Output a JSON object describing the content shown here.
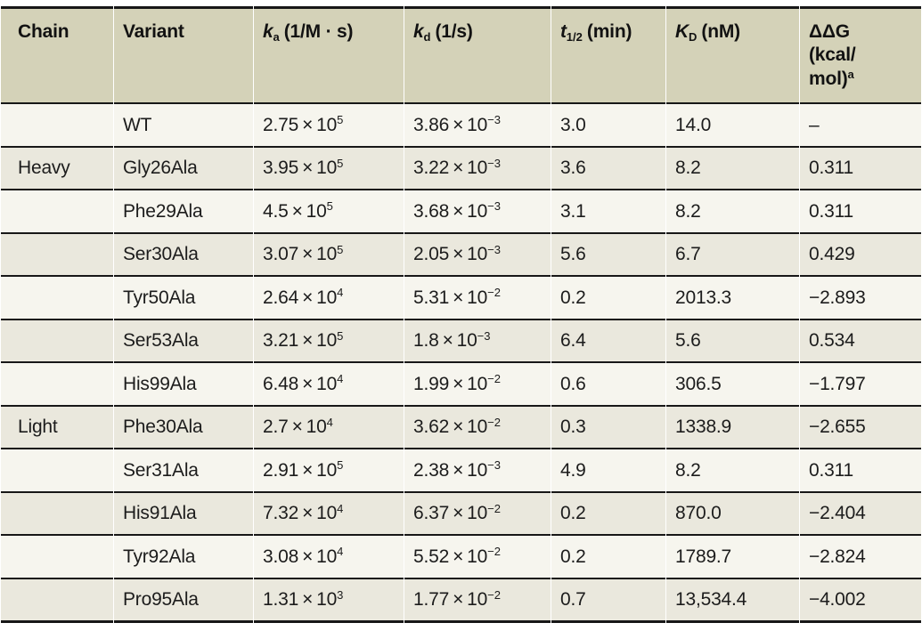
{
  "table": {
    "columns": [
      {
        "label": "Chain"
      },
      {
        "label": "Variant"
      },
      {
        "symbol": "k",
        "sub": "a",
        "unit": "(1/M · s)"
      },
      {
        "symbol": "k",
        "sub": "d",
        "unit": "(1/s)"
      },
      {
        "symbol": "t",
        "sub": "1/2",
        "unit": "(min)"
      },
      {
        "symbol": "K",
        "sub": "D",
        "unit": "(nM)"
      },
      {
        "line1": "ΔΔG",
        "line2": "(kcal/",
        "line3": "mol)",
        "sup": "a"
      }
    ],
    "rows": [
      {
        "chain": "",
        "variant": "WT",
        "ka": {
          "m": "2.75",
          "e": "5"
        },
        "kd": {
          "m": "3.86",
          "e": "−3"
        },
        "t_half": "3.0",
        "kd_nm": "14.0",
        "ddg": "–"
      },
      {
        "chain": "Heavy",
        "variant": "Gly26Ala",
        "ka": {
          "m": "3.95",
          "e": "5"
        },
        "kd": {
          "m": "3.22",
          "e": "−3"
        },
        "t_half": "3.6",
        "kd_nm": "8.2",
        "ddg": "0.311"
      },
      {
        "chain": "",
        "variant": "Phe29Ala",
        "ka": {
          "m": "4.5",
          "e": "5"
        },
        "kd": {
          "m": "3.68",
          "e": "−3"
        },
        "t_half": "3.1",
        "kd_nm": "8.2",
        "ddg": "0.311"
      },
      {
        "chain": "",
        "variant": "Ser30Ala",
        "ka": {
          "m": "3.07",
          "e": "5"
        },
        "kd": {
          "m": "2.05",
          "e": "−3"
        },
        "t_half": "5.6",
        "kd_nm": "6.7",
        "ddg": "0.429"
      },
      {
        "chain": "",
        "variant": "Tyr50Ala",
        "ka": {
          "m": "2.64",
          "e": "4"
        },
        "kd": {
          "m": "5.31",
          "e": "−2"
        },
        "t_half": "0.2",
        "kd_nm": "2013.3",
        "ddg": "−2.893"
      },
      {
        "chain": "",
        "variant": "Ser53Ala",
        "ka": {
          "m": "3.21",
          "e": "5"
        },
        "kd": {
          "m": "1.8",
          "e": "−3"
        },
        "t_half": "6.4",
        "kd_nm": "5.6",
        "ddg": "0.534"
      },
      {
        "chain": "",
        "variant": "His99Ala",
        "ka": {
          "m": "6.48",
          "e": "4"
        },
        "kd": {
          "m": "1.99",
          "e": "−2"
        },
        "t_half": "0.6",
        "kd_nm": "306.5",
        "ddg": "−1.797"
      },
      {
        "chain": "Light",
        "variant": "Phe30Ala",
        "ka": {
          "m": "2.7",
          "e": "4"
        },
        "kd": {
          "m": "3.62",
          "e": "−2"
        },
        "t_half": "0.3",
        "kd_nm": "1338.9",
        "ddg": "−2.655"
      },
      {
        "chain": "",
        "variant": "Ser31Ala",
        "ka": {
          "m": "2.91",
          "e": "5"
        },
        "kd": {
          "m": "2.38",
          "e": "−3"
        },
        "t_half": "4.9",
        "kd_nm": "8.2",
        "ddg": "0.311"
      },
      {
        "chain": "",
        "variant": "His91Ala",
        "ka": {
          "m": "7.32",
          "e": "4"
        },
        "kd": {
          "m": "6.37",
          "e": "−2"
        },
        "t_half": "0.2",
        "kd_nm": "870.0",
        "ddg": "−2.404"
      },
      {
        "chain": "",
        "variant": "Tyr92Ala",
        "ka": {
          "m": "3.08",
          "e": "4"
        },
        "kd": {
          "m": "5.52",
          "e": "−2"
        },
        "t_half": "0.2",
        "kd_nm": "1789.7",
        "ddg": "−2.824"
      },
      {
        "chain": "",
        "variant": "Pro95Ala",
        "ka": {
          "m": "1.31",
          "e": "3"
        },
        "kd": {
          "m": "1.77",
          "e": "−2"
        },
        "t_half": "0.7",
        "kd_nm": "13,534.4",
        "ddg": "−4.002"
      }
    ]
  }
}
